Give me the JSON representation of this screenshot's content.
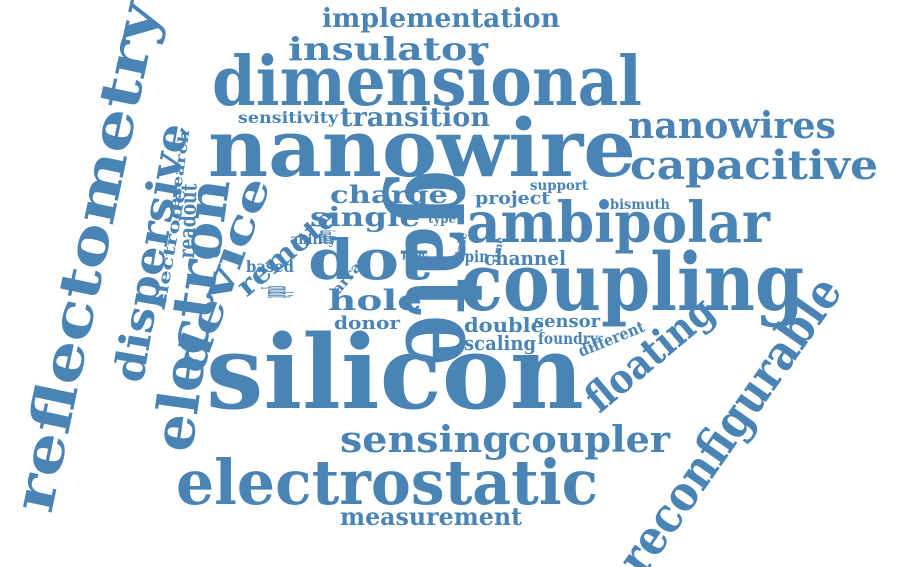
{
  "style": {
    "word_color": "#4a84b5",
    "background": "#ffffff"
  },
  "words": [
    "implementation",
    "insulator",
    "dimensional",
    "nanowire",
    "nanowires",
    "capacitive",
    "sensitivity",
    "transition",
    "charge",
    "project",
    "support",
    "bismuth",
    "single",
    "type",
    "ambipolar",
    "ability",
    "inter",
    "dot",
    "proc",
    "spin",
    "channel",
    "based",
    "coupling",
    "hole",
    "remote",
    "qubit",
    "array",
    "donor",
    "double",
    "sensor",
    "scaling",
    "foundry",
    "different",
    "silicon",
    "gate",
    "floating",
    "sensing",
    "coupler",
    "electrostatic",
    "measurement",
    "reconfigurable",
    "reflectometry",
    "dispersive",
    "device",
    "electron",
    "electrode",
    "research",
    "readout",
    "state",
    "time"
  ]
}
